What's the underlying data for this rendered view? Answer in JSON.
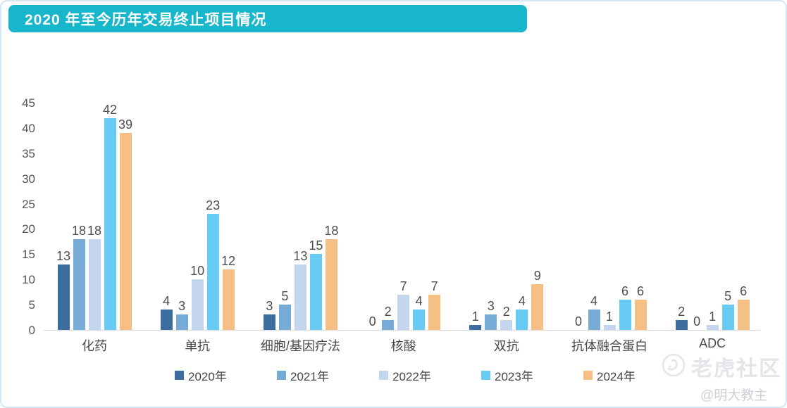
{
  "header": {
    "title": "2020 年至今历年交易终止项目情况"
  },
  "watermark": {
    "brand": "老虎社区",
    "author": "@明大教主",
    "logo_icon": "tiger-circle-logo-icon"
  },
  "colors": {
    "title_bar": "#18B6CB",
    "card_border": "#D6E7F6",
    "axis_line": "#DBDBDB",
    "label_text": "#4D4D4D",
    "watermark_gray": "#E3E5E8"
  },
  "chart_data": {
    "type": "bar",
    "title": "2020 年至今历年交易终止项目情况",
    "categories": [
      "化药",
      "单抗",
      "细胞/基因疗法",
      "核酸",
      "双抗",
      "抗体融合蛋白",
      "ADC"
    ],
    "series": [
      {
        "name": "2020年",
        "color": "#3D6D9E",
        "values": [
          13,
          4,
          3,
          0,
          1,
          0,
          2
        ]
      },
      {
        "name": "2021年",
        "color": "#76ABD6",
        "values": [
          18,
          3,
          5,
          2,
          3,
          4,
          0
        ]
      },
      {
        "name": "2022年",
        "color": "#C4D6ED",
        "values": [
          18,
          10,
          13,
          7,
          2,
          1,
          1
        ]
      },
      {
        "name": "2023年",
        "color": "#68CBF4",
        "values": [
          42,
          23,
          15,
          4,
          4,
          6,
          5
        ]
      },
      {
        "name": "2024年",
        "color": "#F6C085",
        "values": [
          39,
          12,
          18,
          7,
          9,
          6,
          6
        ]
      }
    ],
    "ylim": [
      0,
      45
    ],
    "yticks": [
      0,
      5,
      10,
      15,
      20,
      25,
      30,
      35,
      40,
      45
    ],
    "grid": false,
    "data_labels": true,
    "legend_position": "bottom"
  }
}
